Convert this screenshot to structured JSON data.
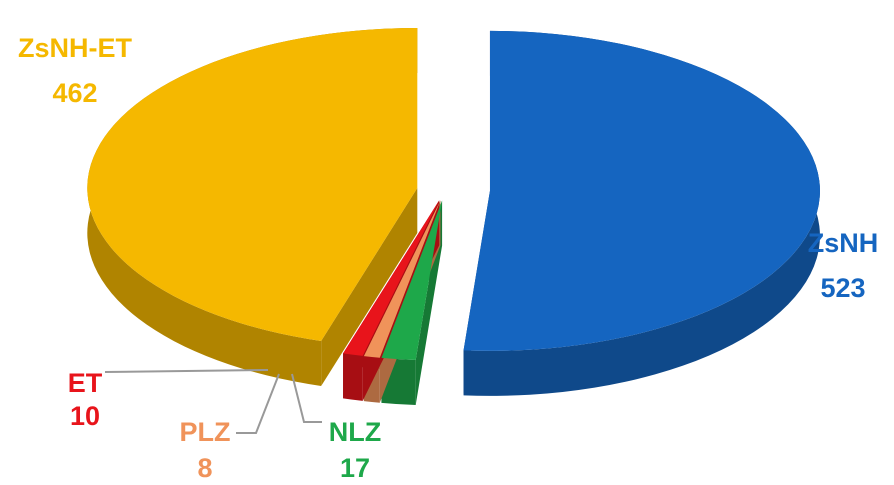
{
  "chart_data": {
    "type": "pie",
    "categories": [
      "ZsNH",
      "NLZ",
      "PLZ",
      "ET",
      "ZsNH-ET"
    ],
    "values": [
      523,
      17,
      8,
      10,
      462
    ],
    "colors": [
      "#1565c0",
      "#1ea84a",
      "#f0935a",
      "#e8141b",
      "#f5b800"
    ]
  }
}
